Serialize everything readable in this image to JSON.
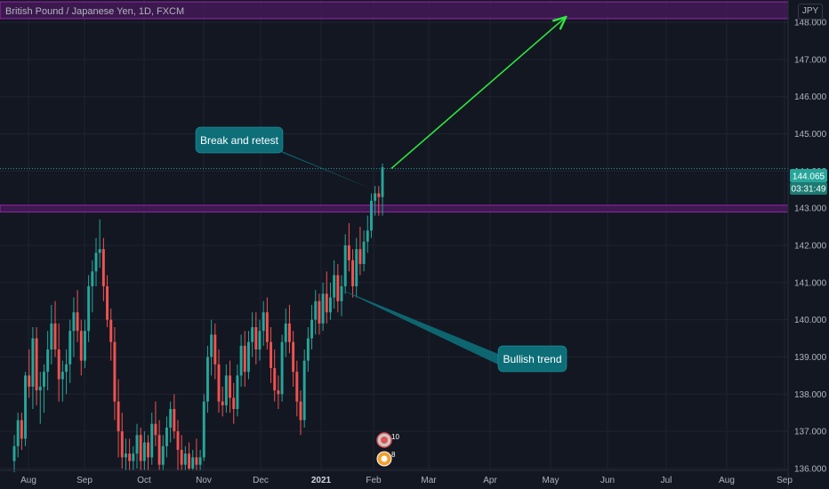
{
  "header": {
    "title": "British Pound / Japanese Yen, 1D, FXCM",
    "currency": "JPY"
  },
  "price": {
    "current": "144.065",
    "countdown": "03:31:49"
  },
  "annotations": {
    "break_retest": "Break and retest",
    "bullish_trend": "Bullish trend"
  },
  "events": {
    "count_top": "10",
    "count_bottom": "8"
  },
  "colors": {
    "background": "#131722",
    "grid": "#1f2330",
    "up": "#26a69a",
    "down": "#ef5350",
    "zone_fill": "#4a1a5e",
    "zone_border": "#9c27b0",
    "callout": "#0d6e78",
    "target_arrow": "#2ee83e",
    "axis_text": "#b2b5be"
  },
  "chart_data": {
    "type": "candlestick",
    "symbol": "GBPJPY",
    "timeframe": "1D",
    "ylim": [
      135.95,
      148.6
    ],
    "y_ticks": [
      "148.000",
      "147.000",
      "146.000",
      "145.000",
      "144.000",
      "143.000",
      "142.000",
      "141.000",
      "140.000",
      "139.000",
      "138.000",
      "137.000",
      "136.000"
    ],
    "x_ticks": [
      "Aug",
      "Sep",
      "Oct",
      "Nov",
      "Dec",
      "2021",
      "Feb",
      "Mar",
      "Apr",
      "May",
      "Jun",
      "Jul",
      "Aug",
      "Sep"
    ],
    "zones": [
      {
        "name": "resistance",
        "low": 148.1,
        "high": 148.55
      },
      {
        "name": "support",
        "low": 142.9,
        "high": 143.08
      }
    ],
    "last_close": 144.065,
    "projection": {
      "from": 144.07,
      "to": 148.12
    },
    "candles": [
      [
        136.2,
        136.9,
        135.9,
        136.6
      ],
      [
        136.6,
        137.5,
        136.3,
        137.3
      ],
      [
        137.3,
        137.5,
        136.5,
        136.8
      ],
      [
        136.8,
        138.6,
        136.6,
        138.5
      ],
      [
        138.5,
        139.2,
        137.9,
        138.2
      ],
      [
        138.2,
        139.8,
        137.6,
        139.5
      ],
      [
        139.5,
        139.8,
        137.7,
        138.1
      ],
      [
        138.1,
        138.6,
        137.2,
        138.2
      ],
      [
        138.2,
        138.8,
        137.5,
        138.6
      ],
      [
        138.6,
        139.7,
        138.1,
        139.2
      ],
      [
        139.2,
        140.4,
        138.8,
        139.9
      ],
      [
        139.9,
        140.5,
        139.0,
        139.2
      ],
      [
        139.2,
        139.9,
        137.8,
        138.4
      ],
      [
        138.4,
        138.9,
        137.8,
        138.6
      ],
      [
        138.6,
        139.2,
        138.0,
        138.8
      ],
      [
        138.8,
        140.0,
        138.3,
        139.7
      ],
      [
        139.7,
        140.6,
        139.0,
        140.2
      ],
      [
        140.2,
        140.8,
        139.4,
        139.7
      ],
      [
        139.7,
        140.0,
        138.5,
        138.9
      ],
      [
        138.9,
        140.0,
        138.7,
        139.7
      ],
      [
        139.7,
        141.2,
        139.4,
        140.9
      ],
      [
        140.9,
        141.6,
        140.2,
        141.3
      ],
      [
        141.3,
        142.2,
        140.9,
        141.8
      ],
      [
        141.8,
        142.7,
        141.4,
        141.9
      ],
      [
        141.9,
        142.2,
        140.5,
        140.9
      ],
      [
        140.9,
        141.2,
        139.8,
        140.0
      ],
      [
        140.0,
        140.3,
        138.9,
        139.4
      ],
      [
        139.4,
        139.8,
        137.3,
        137.8
      ],
      [
        137.8,
        138.4,
        136.3,
        137.0
      ],
      [
        137.0,
        137.5,
        136.0,
        136.3
      ],
      [
        136.3,
        136.8,
        135.95,
        136.4
      ],
      [
        136.4,
        136.8,
        135.95,
        136.2
      ],
      [
        136.2,
        136.6,
        135.95,
        136.4
      ],
      [
        136.4,
        137.2,
        136.0,
        136.9
      ],
      [
        136.9,
        137.1,
        135.95,
        136.2
      ],
      [
        136.2,
        137.0,
        135.95,
        136.7
      ],
      [
        136.7,
        136.9,
        135.95,
        136.3
      ],
      [
        136.3,
        137.5,
        136.1,
        137.2
      ],
      [
        137.2,
        137.8,
        136.6,
        136.9
      ],
      [
        136.9,
        137.3,
        135.95,
        136.1
      ],
      [
        136.1,
        136.9,
        135.95,
        136.6
      ],
      [
        136.6,
        137.4,
        136.3,
        137.1
      ],
      [
        137.1,
        137.8,
        136.7,
        137.6
      ],
      [
        137.6,
        138.0,
        136.8,
        137.0
      ],
      [
        137.0,
        137.3,
        135.95,
        136.5
      ],
      [
        136.5,
        136.9,
        135.95,
        136.1
      ],
      [
        136.1,
        136.6,
        135.95,
        136.4
      ],
      [
        136.4,
        136.7,
        135.95,
        136.0
      ],
      [
        136.0,
        136.5,
        135.95,
        136.3
      ],
      [
        136.3,
        136.8,
        135.95,
        136.1
      ],
      [
        136.1,
        136.5,
        135.95,
        136.3
      ],
      [
        136.3,
        138.0,
        136.2,
        137.8
      ],
      [
        137.8,
        139.3,
        137.5,
        139.0
      ],
      [
        139.0,
        140.0,
        138.5,
        139.6
      ],
      [
        139.6,
        139.9,
        138.4,
        138.8
      ],
      [
        138.8,
        139.2,
        137.5,
        137.8
      ],
      [
        137.8,
        138.2,
        137.4,
        137.7
      ],
      [
        137.7,
        138.8,
        137.5,
        138.5
      ],
      [
        138.5,
        138.9,
        137.5,
        137.9
      ],
      [
        137.9,
        138.3,
        137.2,
        137.6
      ],
      [
        137.6,
        138.8,
        137.4,
        138.5
      ],
      [
        138.5,
        139.6,
        138.2,
        139.3
      ],
      [
        139.3,
        139.7,
        138.2,
        138.6
      ],
      [
        138.6,
        139.7,
        138.4,
        139.4
      ],
      [
        139.4,
        140.2,
        139.0,
        139.8
      ],
      [
        139.8,
        140.2,
        138.8,
        139.2
      ],
      [
        139.2,
        140.0,
        138.9,
        139.7
      ],
      [
        139.7,
        140.5,
        139.3,
        140.2
      ],
      [
        140.2,
        140.6,
        139.2,
        139.4
      ],
      [
        139.4,
        139.8,
        138.3,
        138.7
      ],
      [
        138.7,
        139.2,
        137.8,
        138.1
      ],
      [
        138.1,
        138.5,
        137.6,
        138.0
      ],
      [
        138.0,
        139.6,
        137.8,
        139.4
      ],
      [
        139.4,
        140.3,
        139.0,
        139.9
      ],
      [
        139.9,
        140.4,
        139.1,
        139.4
      ],
      [
        139.4,
        139.7,
        138.2,
        138.6
      ],
      [
        138.6,
        138.9,
        137.4,
        137.8
      ],
      [
        137.8,
        138.1,
        136.9,
        137.3
      ],
      [
        137.3,
        139.2,
        137.1,
        138.9
      ],
      [
        138.9,
        139.8,
        138.6,
        139.5
      ],
      [
        139.5,
        140.4,
        139.2,
        140.0
      ],
      [
        140.0,
        140.8,
        139.6,
        140.5
      ],
      [
        140.5,
        140.7,
        139.6,
        139.9
      ],
      [
        139.9,
        141.0,
        139.7,
        140.7
      ],
      [
        140.7,
        141.3,
        139.9,
        140.2
      ],
      [
        140.2,
        141.0,
        140.0,
        140.6
      ],
      [
        140.6,
        141.6,
        140.3,
        141.2
      ],
      [
        141.2,
        141.5,
        140.2,
        140.5
      ],
      [
        140.5,
        141.2,
        140.1,
        140.9
      ],
      [
        140.9,
        142.3,
        140.7,
        142.0
      ],
      [
        142.0,
        142.6,
        141.3,
        141.6
      ],
      [
        141.6,
        141.9,
        140.6,
        140.9
      ],
      [
        140.9,
        142.2,
        140.6,
        141.9
      ],
      [
        141.9,
        142.5,
        141.2,
        141.5
      ],
      [
        141.5,
        142.4,
        141.3,
        142.1
      ],
      [
        142.1,
        142.8,
        141.8,
        142.4
      ],
      [
        142.4,
        143.4,
        142.2,
        143.2
      ],
      [
        143.2,
        143.6,
        142.8,
        143.4
      ],
      [
        143.4,
        143.6,
        142.8,
        143.3
      ],
      [
        143.3,
        144.2,
        142.8,
        144.1
      ]
    ]
  }
}
